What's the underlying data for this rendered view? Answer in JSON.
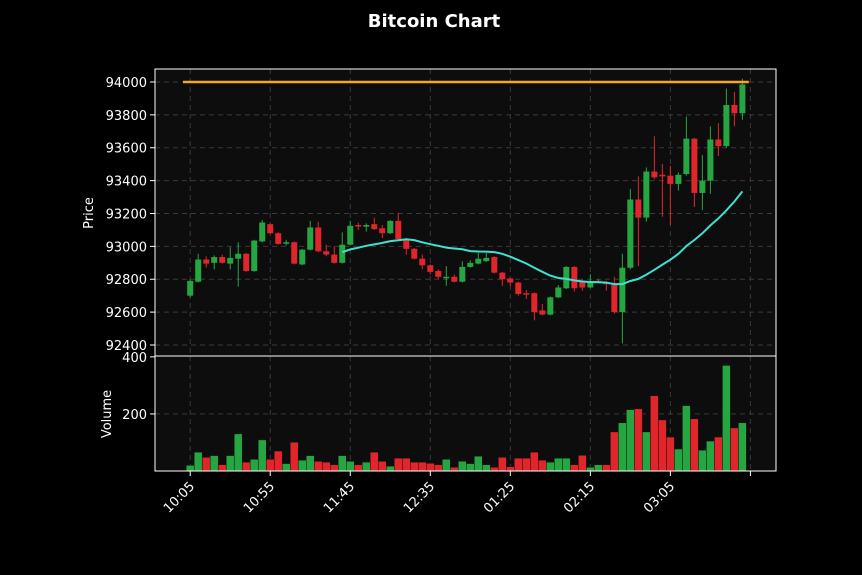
{
  "chart_data": [
    {
      "type": "candlestick",
      "title": "Bitcoin Chart",
      "ylabel": "Price",
      "ylim": [
        92333,
        94079
      ],
      "xlim": [
        -4.4,
        73.2
      ],
      "yticks": [
        92400,
        92600,
        92800,
        93000,
        93200,
        93400,
        93600,
        93800,
        94000
      ],
      "xtick_positions": [
        0,
        10,
        20,
        30,
        40,
        50,
        60,
        70
      ],
      "xtick_labels": [
        "10:05",
        "10:55",
        "11:45",
        "12:35",
        "01:25",
        "02:15",
        "03:05",
        ""
      ],
      "grid": true,
      "colors": {
        "up": "#26a641",
        "down": "#e0252b",
        "ma": "#40e0d0",
        "hline": "#f5a623",
        "background": "#0d0d0d"
      },
      "moving_average_period": 20,
      "hline": {
        "value": 94000,
        "x_from": -0.9,
        "x_to": 69.8
      },
      "ohlc": [
        [
          92700,
          92800,
          92690,
          92790
        ],
        [
          92785,
          92955,
          92780,
          92920
        ],
        [
          92920,
          92940,
          92870,
          92895
        ],
        [
          92900,
          92945,
          92860,
          92935
        ],
        [
          92935,
          92950,
          92895,
          92900
        ],
        [
          92895,
          92995,
          92860,
          92930
        ],
        [
          92925,
          93025,
          92755,
          92955
        ],
        [
          92955,
          92960,
          92845,
          92850
        ],
        [
          92850,
          93040,
          92845,
          93035
        ],
        [
          93030,
          93160,
          93025,
          93145
        ],
        [
          93135,
          93140,
          93075,
          93080
        ],
        [
          93080,
          93085,
          93010,
          93015
        ],
        [
          93020,
          93040,
          93005,
          93025
        ],
        [
          93025,
          93030,
          92890,
          92895
        ],
        [
          92890,
          92985,
          92885,
          92980
        ],
        [
          92980,
          93155,
          92975,
          93115
        ],
        [
          93115,
          93150,
          92965,
          92970
        ],
        [
          92970,
          93010,
          92940,
          92950
        ],
        [
          92950,
          93000,
          92895,
          92900
        ],
        [
          92900,
          93085,
          92895,
          93010
        ],
        [
          93010,
          93155,
          93005,
          93125
        ],
        [
          93130,
          93145,
          93100,
          93125
        ],
        [
          93120,
          93140,
          93090,
          93130
        ],
        [
          93135,
          93175,
          93100,
          93105
        ],
        [
          93110,
          93130,
          93050,
          93080
        ],
        [
          93080,
          93160,
          93075,
          93155
        ],
        [
          93155,
          93205,
          93040,
          93045
        ],
        [
          93045,
          93050,
          92950,
          92985
        ],
        [
          92985,
          92990,
          92920,
          92925
        ],
        [
          92925,
          92950,
          92860,
          92885
        ],
        [
          92885,
          92890,
          92830,
          92845
        ],
        [
          92850,
          92860,
          92800,
          92815
        ],
        [
          92810,
          92880,
          92760,
          92815
        ],
        [
          92815,
          92830,
          92780,
          92785
        ],
        [
          92785,
          92910,
          92780,
          92875
        ],
        [
          92875,
          92915,
          92870,
          92900
        ],
        [
          92895,
          92960,
          92890,
          92925
        ],
        [
          92910,
          92960,
          92905,
          92930
        ],
        [
          92935,
          92940,
          92835,
          92840
        ],
        [
          92840,
          92845,
          92760,
          92800
        ],
        [
          92805,
          92810,
          92760,
          92780
        ],
        [
          92780,
          92785,
          92700,
          92710
        ],
        [
          92715,
          92735,
          92680,
          92710
        ],
        [
          92715,
          92720,
          92550,
          92600
        ],
        [
          92610,
          92650,
          92580,
          92585
        ],
        [
          92585,
          92695,
          92580,
          92690
        ],
        [
          92690,
          92765,
          92685,
          92750
        ],
        [
          92745,
          92880,
          92740,
          92875
        ],
        [
          92875,
          92880,
          92725,
          92745
        ],
        [
          92785,
          92800,
          92730,
          92750
        ],
        [
          92750,
          92830,
          92745,
          92785
        ],
        [
          92785,
          92800,
          92780,
          92790
        ],
        [
          92780,
          92790,
          92730,
          92770
        ],
        [
          92775,
          92815,
          92590,
          92600
        ],
        [
          92600,
          92955,
          92410,
          92870
        ],
        [
          92870,
          93350,
          92860,
          93285
        ],
        [
          93285,
          93425,
          92880,
          93175
        ],
        [
          93175,
          93480,
          93150,
          93455
        ],
        [
          93455,
          93670,
          93410,
          93420
        ],
        [
          93435,
          93500,
          93180,
          93430
        ],
        [
          93430,
          93490,
          93130,
          93380
        ],
        [
          93380,
          93450,
          93340,
          93435
        ],
        [
          93440,
          93790,
          93430,
          93655
        ],
        [
          93655,
          93660,
          93240,
          93325
        ],
        [
          93325,
          93555,
          93220,
          93400
        ],
        [
          93400,
          93730,
          93320,
          93650
        ],
        [
          93650,
          93750,
          93550,
          93610
        ],
        [
          93610,
          93960,
          93600,
          93860
        ],
        [
          93860,
          93940,
          93730,
          93810
        ],
        [
          93810,
          94020,
          93770,
          93985
        ]
      ]
    },
    {
      "type": "bar",
      "ylabel": "Volume",
      "ylim": [
        0,
        403
      ],
      "yticks": [
        200,
        400
      ],
      "grid": true,
      "values": [
        20,
        66,
        48,
        54,
        22,
        54,
        130,
        31,
        41,
        109,
        41,
        70,
        26,
        101,
        38,
        54,
        34,
        31,
        22,
        54,
        34,
        22,
        31,
        66,
        34,
        17,
        45,
        45,
        31,
        31,
        27,
        22,
        41,
        13,
        34,
        26,
        52,
        22,
        13,
        48,
        15,
        45,
        45,
        66,
        38,
        31,
        45,
        45,
        22,
        55,
        13,
        22,
        22,
        137,
        169,
        215,
        218,
        137,
        264,
        179,
        119,
        77,
        229,
        183,
        73,
        105,
        119,
        370,
        151,
        169
      ]
    }
  ]
}
